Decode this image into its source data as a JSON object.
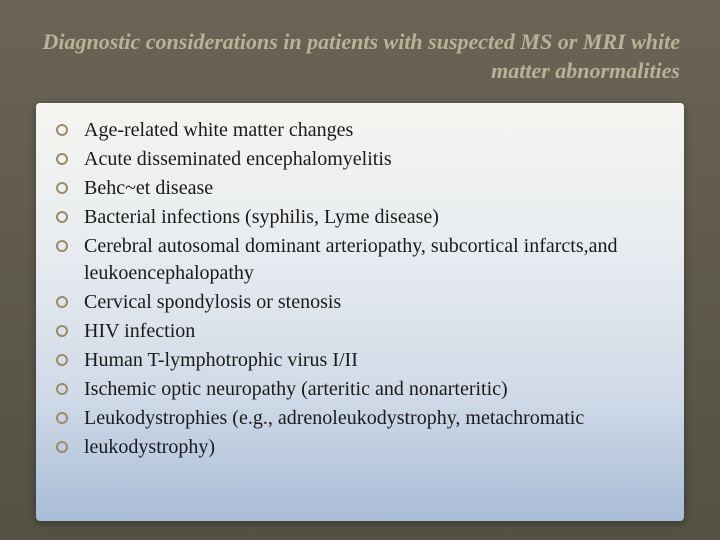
{
  "slide": {
    "title": "Diagnostic considerations in patients with suspected MS or MRI white matter abnormalities",
    "items": [
      "Age-related white matter changes",
      "Acute disseminated encephalomyelitis",
      "Behc~et disease",
      "Bacterial infections (syphilis, Lyme disease)",
      "Cerebral autosomal dominant arteriopathy, subcortical infarcts,and leukoencephalopathy",
      "Cervical spondylosis or stenosis",
      "HIV infection",
      "Human T-lymphotrophic virus I/II",
      "Ischemic optic neuropathy (arteritic and nonarteritic)",
      "Leukodystrophies (e.g., adrenoleukodystrophy, metachromatic",
      "leukodystrophy)"
    ]
  },
  "style": {
    "background_gradient": [
      "#6b6456",
      "#5f5a4e",
      "#545044"
    ],
    "title_color": "#b8b296",
    "title_fontsize": 22,
    "title_font_style": "italic bold",
    "content_gradient": [
      "#f5f5f0",
      "#e8ecf0",
      "#d0dae8",
      "#a8bcd8"
    ],
    "bullet_ring_color": "#9a8b6a",
    "bullet_text_color": "#1a1a1a",
    "bullet_fontsize": 20,
    "font_family": "Georgia, serif"
  }
}
